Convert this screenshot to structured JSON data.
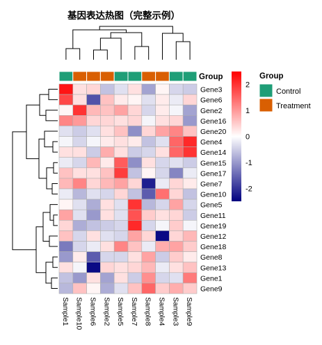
{
  "chart_data": {
    "type": "heatmap",
    "title": "基因表达热图（完整示例）",
    "columns": [
      "Sample1",
      "Sample10",
      "Sample6",
      "Sample2",
      "Sample5",
      "Sample7",
      "Sample8",
      "Sample4",
      "Sample3",
      "Sample9"
    ],
    "column_groups": [
      "Control",
      "Treatment",
      "Treatment",
      "Treatment",
      "Control",
      "Control",
      "Treatment",
      "Treatment",
      "Control",
      "Control"
    ],
    "rows": [
      "Gene3",
      "Gene6",
      "Gene2",
      "Gene16",
      "Gene20",
      "Gene4",
      "Gene14",
      "Gene15",
      "Gene17",
      "Gene7",
      "Gene10",
      "Gene5",
      "Gene11",
      "Gene19",
      "Gene12",
      "Gene18",
      "Gene8",
      "Gene13",
      "Gene1",
      "Gene9"
    ],
    "values": [
      [
        2.3,
        0.3,
        0.4,
        -0.6,
        -0.3,
        0.3,
        -0.9,
        0.1,
        -0.4,
        -0.5
      ],
      [
        1.8,
        0.3,
        -1.7,
        0.6,
        0.2,
        0.1,
        -0.3,
        0.2,
        -0.2,
        0.4
      ],
      [
        0.1,
        2.0,
        0.7,
        0.6,
        0.9,
        0.4,
        -0.4,
        0.2,
        -0.1,
        -0.9
      ],
      [
        1.2,
        1.0,
        0.4,
        0.4,
        0.3,
        0.4,
        -0.1,
        0.3,
        0.4,
        -1.0
      ],
      [
        -0.3,
        -0.5,
        -0.3,
        0.3,
        0.6,
        -1.1,
        0.4,
        0.9,
        1.2,
        0.6
      ],
      [
        -0.1,
        -0.4,
        -0.1,
        0.2,
        0.3,
        0.2,
        -0.6,
        -0.3,
        1.5,
        2.1
      ],
      [
        0.3,
        0.3,
        -0.5,
        0.8,
        0.3,
        -0.5,
        -0.4,
        0.3,
        1.5,
        2.0
      ],
      [
        -0.2,
        -0.4,
        0.7,
        0.2,
        1.6,
        -1.1,
        0.3,
        -0.4,
        -0.3,
        -0.5
      ],
      [
        0.6,
        0.3,
        0.3,
        0.6,
        1.9,
        -0.6,
        0.1,
        -0.4,
        -1.2,
        -0.2
      ],
      [
        0.7,
        1.2,
        0.4,
        0.7,
        0.9,
        0.4,
        -2.2,
        -0.2,
        0.4,
        0.2
      ],
      [
        -0.2,
        -0.7,
        -0.3,
        -0.4,
        0.4,
        -0.6,
        -1.6,
        1.4,
        0.4,
        -0.6
      ],
      [
        0.1,
        -0.3,
        -0.8,
        0.3,
        -0.3,
        2.0,
        -0.7,
        -0.4,
        0.9,
        -0.4
      ],
      [
        0.9,
        -0.3,
        -1.0,
        0.3,
        -0.3,
        1.7,
        0.5,
        0.3,
        0.4,
        -0.5
      ],
      [
        0.4,
        -0.8,
        -0.6,
        -0.5,
        -0.4,
        2.1,
        -0.4,
        -0.1,
        0.5,
        -0.1
      ],
      [
        0.6,
        -0.4,
        0.3,
        -0.3,
        -0.4,
        0.9,
        0.4,
        -2.4,
        0.4,
        0.7
      ],
      [
        -1.3,
        -0.4,
        -0.2,
        0.3,
        1.2,
        0.6,
        -0.2,
        0.8,
        0.9,
        0.5
      ],
      [
        -1.0,
        0.2,
        -1.6,
        -0.4,
        -0.4,
        0.3,
        0.9,
        -0.5,
        0.5,
        0.2
      ],
      [
        0.3,
        -0.1,
        -2.4,
        0.4,
        0.3,
        0.4,
        0.7,
        -0.2,
        0.3,
        0.6
      ],
      [
        -0.6,
        -1.0,
        0.3,
        -0.9,
        0.3,
        -0.5,
        1.1,
        -0.4,
        -0.3,
        1.3
      ],
      [
        -0.7,
        0.6,
        0.1,
        -0.8,
        -0.3,
        0.6,
        1.5,
        0.5,
        0.8,
        0.5
      ]
    ],
    "color_scale": {
      "low": "#000080",
      "mid": "#ffffff",
      "high": "#ff0000",
      "min": -2.5,
      "max": 2.5,
      "ticks": [
        2,
        1,
        0,
        -1,
        -2
      ]
    },
    "annotation_legend": {
      "title": "Group",
      "items": [
        {
          "label": "Control",
          "color": "#1f9e77"
        },
        {
          "label": "Treatment",
          "color": "#d95f02"
        }
      ]
    },
    "annotation_row_label": "Group"
  }
}
